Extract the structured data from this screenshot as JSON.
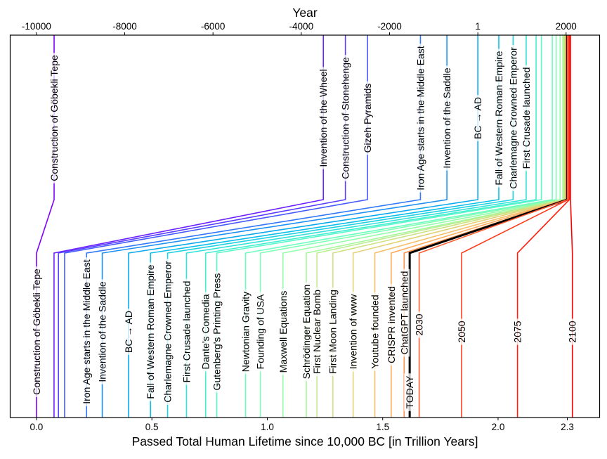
{
  "chart_data": {
    "type": "line",
    "top_axis": {
      "label": "Year",
      "range": [
        -10595,
        2760
      ],
      "ticks": [
        -10000,
        -8000,
        -6000,
        -4000,
        -2000,
        1,
        2000
      ],
      "tick_labels": [
        "-10000",
        "-8000",
        "-6000",
        "-4000",
        "-2000",
        "1",
        "2000"
      ]
    },
    "bottom_axis": {
      "label": "Passed Total Human Lifetime since 10,000 BC [in Trillion Years]",
      "range": [
        -0.114,
        2.44
      ],
      "ticks": [
        0.0,
        0.5,
        1.0,
        1.5,
        2.0,
        2.3
      ],
      "tick_labels": [
        "0.0",
        "0.5",
        "1.0",
        "1.5",
        "2.0",
        "2.3"
      ]
    },
    "colormap": "rainbow",
    "today_color": "#000000",
    "events": [
      {
        "label": "Construction of Göbekli Tepe",
        "year": -9600,
        "lifetime": 0.0,
        "top_label": true,
        "bottom_label": true
      },
      {
        "label": "Invention of the Wheel",
        "year": -3500,
        "lifetime": 0.076,
        "top_label": true,
        "bottom_label": false
      },
      {
        "label": "Construction of Stonehenge",
        "year": -3000,
        "lifetime": 0.095,
        "top_label": true,
        "bottom_label": false
      },
      {
        "label": "Gizeh Pyramids",
        "year": -2500,
        "lifetime": 0.122,
        "top_label": true,
        "bottom_label": false
      },
      {
        "label": "Iron Age starts in the Middle East",
        "year": -1300,
        "lifetime": 0.217,
        "top_label": true,
        "bottom_label": true
      },
      {
        "label": "Invention of the Saddle",
        "year": -700,
        "lifetime": 0.285,
        "top_label": true,
        "bottom_label": true
      },
      {
        "label": "BC → AD",
        "year": 1,
        "lifetime": 0.399,
        "top_label": true,
        "bottom_label": true
      },
      {
        "label": "Fall of Western Roman Empire",
        "year": 476,
        "lifetime": 0.494,
        "top_label": true,
        "bottom_label": true
      },
      {
        "label": "Charlemagne Crowned Emperor",
        "year": 800,
        "lifetime": 0.568,
        "top_label": true,
        "bottom_label": true
      },
      {
        "label": "First Crusade launched",
        "year": 1096,
        "lifetime": 0.65,
        "top_label": true,
        "bottom_label": true
      },
      {
        "label": "Dante's Comedia",
        "year": 1320,
        "lifetime": 0.733,
        "top_label": false,
        "bottom_label": true
      },
      {
        "label": "Gutenberg's Printing Press",
        "year": 1440,
        "lifetime": 0.781,
        "top_label": false,
        "bottom_label": true
      },
      {
        "label": "Newtonian Gravity",
        "year": 1687,
        "lifetime": 0.906,
        "top_label": false,
        "bottom_label": true
      },
      {
        "label": "Founding of USA",
        "year": 1776,
        "lifetime": 0.97,
        "top_label": false,
        "bottom_label": true
      },
      {
        "label": "Maxwell Equations",
        "year": 1865,
        "lifetime": 1.068,
        "top_label": false,
        "bottom_label": true
      },
      {
        "label": "Schrödinger Equation",
        "year": 1926,
        "lifetime": 1.169,
        "top_label": false,
        "bottom_label": true
      },
      {
        "label": "First Nuclear Bomb",
        "year": 1945,
        "lifetime": 1.215,
        "top_label": false,
        "bottom_label": true
      },
      {
        "label": "First Moon Landing",
        "year": 1969,
        "lifetime": 1.284,
        "top_label": false,
        "bottom_label": true
      },
      {
        "label": "Invention of www",
        "year": 1989,
        "lifetime": 1.372,
        "top_label": false,
        "bottom_label": true
      },
      {
        "label": "Youtube founded",
        "year": 2005,
        "lifetime": 1.466,
        "top_label": false,
        "bottom_label": true
      },
      {
        "label": "CRISPR invented",
        "year": 2012,
        "lifetime": 1.537,
        "top_label": false,
        "bottom_label": true
      },
      {
        "label": "ChatGPT launched",
        "year": 2022,
        "lifetime": 1.593,
        "top_label": false,
        "bottom_label": true
      },
      {
        "label": "TODAY",
        "year": 2024,
        "lifetime": 1.617,
        "top_label": false,
        "bottom_label": true,
        "today": true
      },
      {
        "label": "2030",
        "year": 2030,
        "lifetime": 1.658,
        "top_label": false,
        "bottom_label": true
      },
      {
        "label": "2050",
        "year": 2050,
        "lifetime": 1.842,
        "top_label": false,
        "bottom_label": true
      },
      {
        "label": "2075",
        "year": 2075,
        "lifetime": 2.084,
        "top_label": false,
        "bottom_label": true
      },
      {
        "label": "2100",
        "year": 2100,
        "lifetime": 2.322,
        "top_label": false,
        "bottom_label": true
      }
    ]
  }
}
